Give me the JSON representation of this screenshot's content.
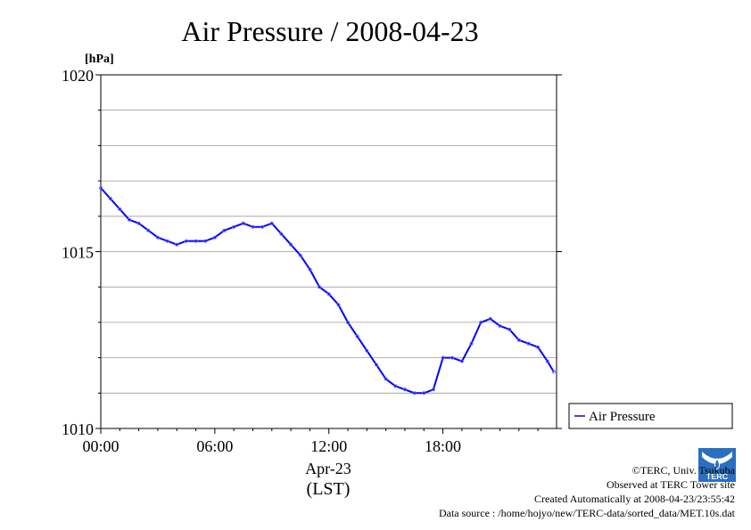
{
  "chart_data": {
    "type": "line",
    "title": "Air Pressure / 2008-04-23",
    "ylabel": "[hPa]",
    "xlabel": "Apr-23",
    "xlabel2": "(LST)",
    "ylim": [
      1010,
      1020
    ],
    "xlim_hours": [
      0,
      23.98
    ],
    "x_ticks": [
      "00:00",
      "06:00",
      "12:00",
      "18:00"
    ],
    "y_ticks": [
      "1010",
      "1015",
      "1020"
    ],
    "grid": true,
    "legend_position": "outside-right",
    "series": [
      {
        "name": "Air Pressure",
        "color": "#0000ff",
        "x": [
          "00:00",
          "00:30",
          "01:00",
          "01:30",
          "02:00",
          "02:30",
          "03:00",
          "03:30",
          "04:00",
          "04:30",
          "05:00",
          "05:30",
          "06:00",
          "06:30",
          "07:00",
          "07:30",
          "08:00",
          "08:30",
          "09:00",
          "09:30",
          "10:00",
          "10:30",
          "11:00",
          "11:30",
          "12:00",
          "12:30",
          "13:00",
          "13:30",
          "14:00",
          "14:30",
          "15:00",
          "15:30",
          "16:00",
          "16:30",
          "17:00",
          "17:30",
          "18:00",
          "18:30",
          "19:00",
          "19:30",
          "20:00",
          "20:30",
          "21:00",
          "21:30",
          "22:00",
          "22:30",
          "23:00",
          "23:30",
          "23:50"
        ],
        "values": [
          1016.8,
          1016.5,
          1016.2,
          1015.9,
          1015.8,
          1015.6,
          1015.4,
          1015.3,
          1015.2,
          1015.3,
          1015.3,
          1015.3,
          1015.4,
          1015.6,
          1015.7,
          1015.8,
          1015.7,
          1015.7,
          1015.8,
          1015.5,
          1015.2,
          1014.9,
          1014.5,
          1014.0,
          1013.8,
          1013.5,
          1013.0,
          1012.6,
          1012.2,
          1011.8,
          1011.4,
          1011.2,
          1011.1,
          1011.0,
          1011.0,
          1011.1,
          1012.0,
          1012.0,
          1011.9,
          1012.4,
          1013.0,
          1013.1,
          1012.9,
          1012.8,
          1012.5,
          1012.4,
          1012.3,
          1011.9,
          1011.6
        ]
      }
    ]
  },
  "credits": {
    "copyright": "©TERC, Univ. Tsukuba",
    "observed": "Observed at TERC Tower site",
    "created": "Created Automatically at 2008-04-23/23:55:42",
    "source": "Data source : /home/hojyo/new/TERC-data/sorted_data/MET.10s.dat",
    "logo_text": "TERC"
  }
}
